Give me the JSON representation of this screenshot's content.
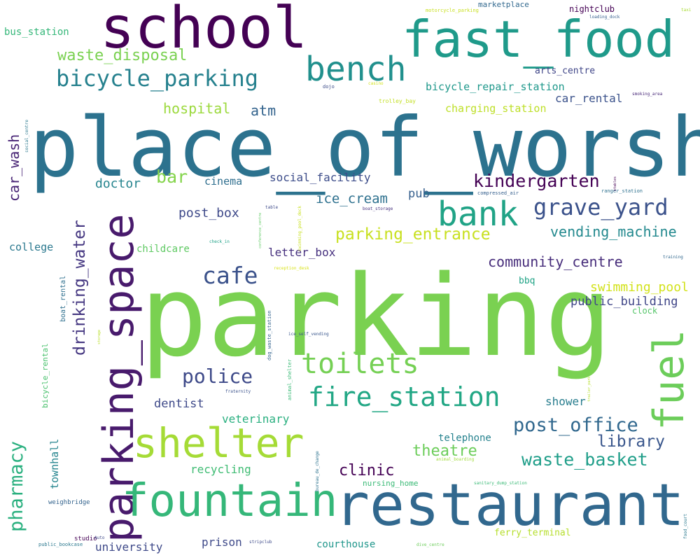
{
  "words": [
    {
      "text": "parking",
      "color": "#7ad151"
    },
    {
      "text": "place_of_worship",
      "color": "#2c728e"
    },
    {
      "text": "school",
      "color": "#440154"
    },
    {
      "text": "fast_food",
      "color": "#1f9a8a"
    },
    {
      "text": "restaurant",
      "color": "#31688e"
    },
    {
      "text": "parking_space",
      "color": "#481a6c"
    },
    {
      "text": "fountain",
      "color": "#35b779"
    },
    {
      "text": "shelter",
      "color": "#a5db36"
    },
    {
      "text": "bench",
      "color": "#21908d"
    },
    {
      "text": "bank",
      "color": "#20a386"
    },
    {
      "text": "fuel",
      "color": "#6ccd5a"
    },
    {
      "text": "toilets",
      "color": "#75d054"
    },
    {
      "text": "fire_station",
      "color": "#22a785"
    },
    {
      "text": "bicycle_parking",
      "color": "#26818e"
    },
    {
      "text": "grave_yard",
      "color": "#3b528b"
    },
    {
      "text": "kindergarten",
      "color": "#440154"
    },
    {
      "text": "police",
      "color": "#3e4a89"
    },
    {
      "text": "cafe",
      "color": "#3b528b"
    },
    {
      "text": "post_office",
      "color": "#31688e"
    },
    {
      "text": "waste_basket",
      "color": "#1f9e89"
    },
    {
      "text": "drinking_water",
      "color": "#453781"
    },
    {
      "text": "pharmacy",
      "color": "#2ab07f"
    },
    {
      "text": "waste_disposal",
      "color": "#7ad151"
    },
    {
      "text": "parking_entrance",
      "color": "#c8e020"
    },
    {
      "text": "library",
      "color": "#39568c"
    },
    {
      "text": "community_centre",
      "color": "#472d7b"
    },
    {
      "text": "vending_machine",
      "color": "#23898e"
    },
    {
      "text": "hospital",
      "color": "#9bd93c"
    },
    {
      "text": "car_wash",
      "color": "#482475"
    },
    {
      "text": "theatre",
      "color": "#6ccd5a"
    },
    {
      "text": "clinic",
      "color": "#440154"
    },
    {
      "text": "bar",
      "color": "#84d44b"
    },
    {
      "text": "atm",
      "color": "#33638d"
    },
    {
      "text": "ice_cream",
      "color": "#2d708e"
    },
    {
      "text": "swimming_pool",
      "color": "#d2e21b"
    },
    {
      "text": "public_building",
      "color": "#404688"
    },
    {
      "text": "dentist",
      "color": "#3e4989"
    },
    {
      "text": "post_box",
      "color": "#3e4989"
    },
    {
      "text": "doctor",
      "color": "#25848e"
    },
    {
      "text": "social_facility",
      "color": "#3d4d8a"
    },
    {
      "text": "veterinary",
      "color": "#29af7f"
    },
    {
      "text": "recycling",
      "color": "#3fbc73"
    },
    {
      "text": "shower",
      "color": "#287d8e"
    },
    {
      "text": "pub",
      "color": "#355f8d"
    },
    {
      "text": "letter_box",
      "color": "#46307e"
    },
    {
      "text": "cinema",
      "color": "#2e6e8e"
    },
    {
      "text": "telephone",
      "color": "#26828e"
    },
    {
      "text": "childcare",
      "color": "#5ec962"
    },
    {
      "text": "college",
      "color": "#2a788e"
    },
    {
      "text": "bicycle_repair_station",
      "color": "#1f988b"
    },
    {
      "text": "charging_station",
      "color": "#bddf26"
    },
    {
      "text": "car_rental",
      "color": "#3b528b"
    },
    {
      "text": "arts_centre",
      "color": "#404688"
    },
    {
      "text": "bus_station",
      "color": "#35b779"
    },
    {
      "text": "university",
      "color": "#3e4989"
    },
    {
      "text": "prison",
      "color": "#3e4989"
    },
    {
      "text": "courthouse",
      "color": "#1f968b"
    },
    {
      "text": "ferry_terminal",
      "color": "#b5de2b"
    },
    {
      "text": "nursing_home",
      "color": "#3aba76"
    },
    {
      "text": "townhall",
      "color": "#25848e"
    },
    {
      "text": "bbq",
      "color": "#20a386"
    },
    {
      "text": "clock",
      "color": "#54c568"
    },
    {
      "text": "nightclub",
      "color": "#440154"
    },
    {
      "text": "marketplace",
      "color": "#31688e"
    },
    {
      "text": "bicycle_rental",
      "color": "#4ac16d"
    },
    {
      "text": "boat_rental",
      "color": "#2e6f8e"
    },
    {
      "text": "trolley_bay",
      "color": "#c2df23"
    },
    {
      "text": "weighbridge",
      "color": "#33638d"
    },
    {
      "text": "studio",
      "color": "#440154"
    },
    {
      "text": "public_bookcase",
      "color": "#2a788e"
    },
    {
      "text": "motorcycle_parking",
      "color": "#c8e020"
    },
    {
      "text": "loading_dock",
      "color": "#355f8d"
    },
    {
      "text": "taxi",
      "color": "#a8db34"
    },
    {
      "text": "dojo",
      "color": "#3d4d8a"
    },
    {
      "text": "casino",
      "color": "#d2e21b"
    },
    {
      "text": "smoking_area",
      "color": "#482878"
    },
    {
      "text": "social_centre",
      "color": "#2a788e"
    },
    {
      "text": "compressed_air",
      "color": "#355f8d"
    },
    {
      "text": "ranger_station",
      "color": "#2d708e"
    },
    {
      "text": "stables",
      "color": "#440154"
    },
    {
      "text": "boat_storage",
      "color": "#46307e"
    },
    {
      "text": "table",
      "color": "#3e4a89"
    },
    {
      "text": "conference_centre",
      "color": "#5ec962"
    },
    {
      "text": "swimming_pool_deck",
      "color": "#c8e020"
    },
    {
      "text": "check_in",
      "color": "#1fa187"
    },
    {
      "text": "reception_desk",
      "color": "#d8e219"
    },
    {
      "text": "training",
      "color": "#31688e"
    },
    {
      "text": "dog_waste_station",
      "color": "#33638d"
    },
    {
      "text": "ice_self_vending",
      "color": "#39568c"
    },
    {
      "text": "animal_shelter",
      "color": "#3aba76"
    },
    {
      "text": "storage",
      "color": "#b8de29"
    },
    {
      "text": "fraternity",
      "color": "#3b528b"
    },
    {
      "text": "trailer_park",
      "color": "#b5de2b"
    },
    {
      "text": "bureau_de_change",
      "color": "#2c728e"
    },
    {
      "text": "animal_boarding",
      "color": "#9fda3a"
    },
    {
      "text": "sanitary_dump_station",
      "color": "#3aba76"
    },
    {
      "text": "stripclub",
      "color": "#3e4a89"
    },
    {
      "text": "dive_centre",
      "color": "#6ccd5a"
    },
    {
      "text": "food_court",
      "color": "#2a788e"
    },
    {
      "text": "Auto",
      "color": "#3e4989"
    }
  ]
}
